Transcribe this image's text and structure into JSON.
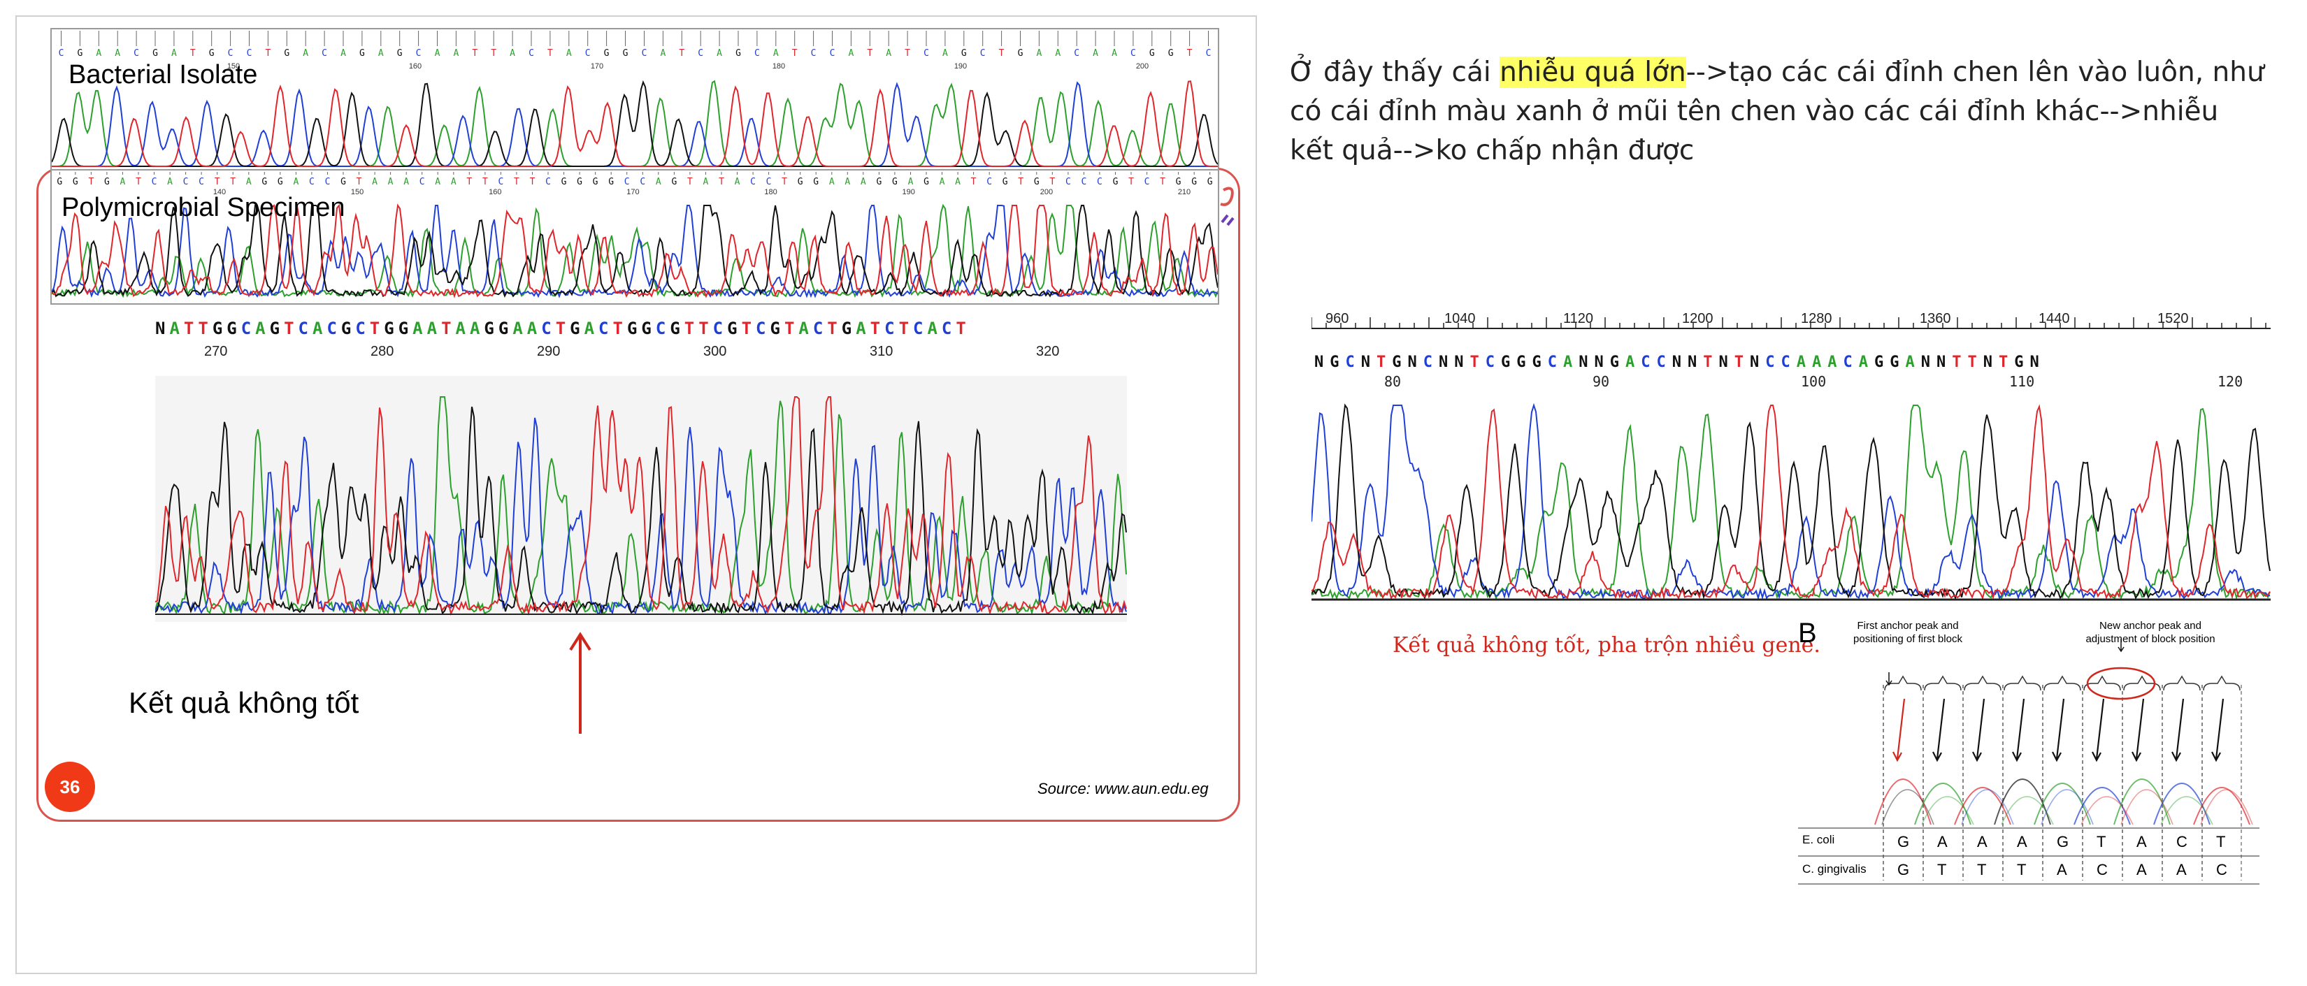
{
  "slide": {
    "panel_top_label": "Bacterial Isolate",
    "panel_mid_label": "Polymicrobial Specimen",
    "top_ticks": [
      "150",
      "160",
      "170",
      "180",
      "190",
      "200"
    ],
    "mid_ticks": [
      "140",
      "150",
      "160",
      "170",
      "180",
      "190",
      "200",
      "210"
    ],
    "center_sequence": "NATTGGCAGTCACGCTGGAATAAGGAACTGACTGGCGTTCGTCGTACTGATCTCACT",
    "center_ticks": [
      "270",
      "280",
      "290",
      "300",
      "310",
      "320"
    ],
    "result_text": "Kết quả không tốt",
    "slide_number": "36",
    "source": "Source: www.aun.edu.eg"
  },
  "note": {
    "before": "Ở đây thấy cái ",
    "highlight": "nhiễu quá lớn",
    "after": "-->tạo các cái đỉnh chen lên vào luôn, như có cái đỉnh màu xanh ở mũi tên chen vào các cái đỉnh khác-->nhiễu kết quả-->ko chấp nhận được"
  },
  "right_chrom": {
    "ruler_ticks": [
      "960",
      "1040",
      "1120",
      "1200",
      "1280",
      "1360",
      "1440",
      "1520"
    ],
    "sequence": "NGCNTGNCNNTCGGGCANNGACCNNTNTNCCAAACAGGANNTTNTGN",
    "seq_ticks": [
      "80",
      "90",
      "100",
      "110",
      "120"
    ]
  },
  "red_caption": "Kết quả không tốt, pha trộn nhiều gene.",
  "panel_b": {
    "letter": "B",
    "left_note": "First anchor peak and positioning of first block",
    "right_note": "New anchor peak and adjustment of block position",
    "row1_label": "E. coli",
    "row1_bases": [
      "G",
      "A",
      "A",
      "A",
      "G",
      "T",
      "A",
      "C",
      "T"
    ],
    "row2_label": "C. gingivalis",
    "row2_bases": [
      "G",
      "T",
      "T",
      "T",
      "A",
      "C",
      "A",
      "A",
      "C"
    ]
  },
  "colors": {
    "A": "#2ca02c",
    "C": "#1f3fd6",
    "G": "#111111",
    "T": "#e0262b",
    "accent": "#d9534f",
    "highlight": "#ffff66"
  }
}
